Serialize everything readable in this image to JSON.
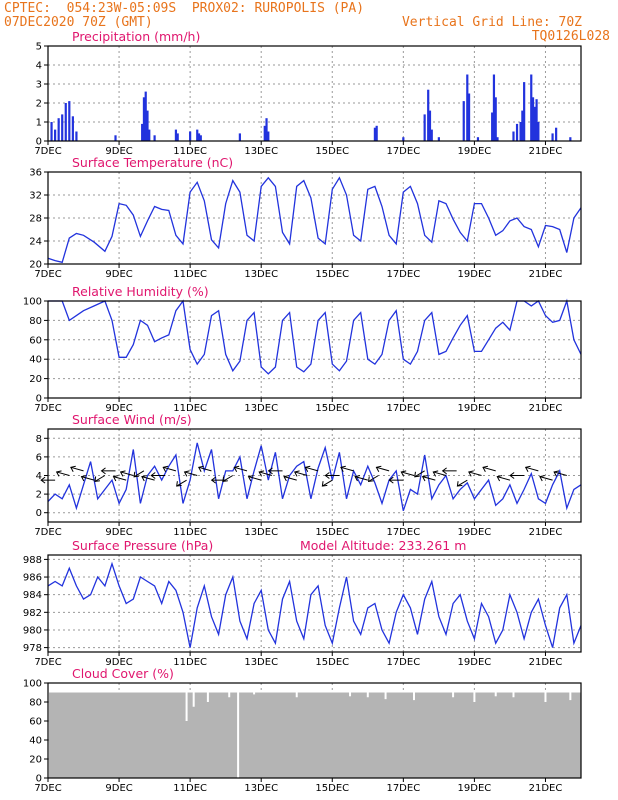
{
  "header": {
    "line1_left": "CPTEC:  054:23W-05:09S  PROX02: RUROPOLIS (PA)",
    "line2_left": "07DEC2020 70Z (GMT)",
    "line2_right": "Vertical Grid Line: 70Z",
    "line3_right": "TQ0126L028"
  },
  "x_ticks": [
    "7DEC",
    "9DEC",
    "11DEC",
    "13DEC",
    "15DEC",
    "17DEC",
    "19DEC",
    "21DEC"
  ],
  "colors": {
    "header": "#e8741c",
    "title": "#e0166e",
    "line": "#2233dd",
    "cloud": "#b4b4b4"
  },
  "chart_data": [
    {
      "type": "bar",
      "title": "Precipitation (mm/h)",
      "x_range_days": [
        7,
        22
      ],
      "ylim": [
        0,
        5
      ],
      "yticks": [
        0,
        1,
        2,
        3,
        4,
        5
      ],
      "grid": true,
      "x_days": [
        7.1,
        7.2,
        7.3,
        7.4,
        7.5,
        7.6,
        7.7,
        7.8,
        8.9,
        9.65,
        9.7,
        9.75,
        9.8,
        9.85,
        10.0,
        10.6,
        10.65,
        11.0,
        11.2,
        11.25,
        11.3,
        12.4,
        13.1,
        13.15,
        13.2,
        16.2,
        16.25,
        17.0,
        17.6,
        17.7,
        17.75,
        17.8,
        18.0,
        18.7,
        18.8,
        18.85,
        19.1,
        19.5,
        19.55,
        19.6,
        19.65,
        20.1,
        20.2,
        20.3,
        20.35,
        20.4,
        20.6,
        20.65,
        20.7,
        20.75,
        20.8,
        21.2,
        21.3,
        21.7
      ],
      "values": [
        1.0,
        0.6,
        1.2,
        1.4,
        2.0,
        2.1,
        1.3,
        0.5,
        0.3,
        0.9,
        2.3,
        2.6,
        1.6,
        0.6,
        0.3,
        0.6,
        0.4,
        0.5,
        0.6,
        0.4,
        0.3,
        0.4,
        0.8,
        1.2,
        0.5,
        0.7,
        0.8,
        0.2,
        1.4,
        2.7,
        1.6,
        0.6,
        0.2,
        2.1,
        3.5,
        2.5,
        0.2,
        1.5,
        3.5,
        2.3,
        0.2,
        0.5,
        0.9,
        1.0,
        1.6,
        3.1,
        3.5,
        2.3,
        1.8,
        2.2,
        1.0,
        0.4,
        0.7,
        0.2
      ]
    },
    {
      "type": "line",
      "title": "Surface Temperature (nC)",
      "ylim": [
        20,
        36
      ],
      "yticks": [
        20,
        24,
        28,
        32,
        36
      ],
      "grid": true,
      "series": [
        {
          "x_days": [
            7.0,
            7.2,
            7.4,
            7.6,
            7.8,
            8.0,
            8.3,
            8.6,
            8.8,
            9.0,
            9.2,
            9.4,
            9.6,
            9.8,
            10.0,
            10.2,
            10.4,
            10.6,
            10.8,
            11.0,
            11.2,
            11.4,
            11.6,
            11.8,
            12.0,
            12.2,
            12.4,
            12.6,
            12.8,
            13.0,
            13.2,
            13.4,
            13.6,
            13.8,
            14.0,
            14.2,
            14.4,
            14.6,
            14.8,
            15.0,
            15.2,
            15.4,
            15.6,
            15.8,
            16.0,
            16.2,
            16.4,
            16.6,
            16.8,
            17.0,
            17.2,
            17.4,
            17.6,
            17.8,
            18.0,
            18.2,
            18.4,
            18.6,
            18.8,
            19.0,
            19.2,
            19.4,
            19.6,
            19.8,
            20.0,
            20.2,
            20.4,
            20.6,
            20.8,
            21.0,
            21.2,
            21.4,
            21.6,
            21.8,
            22.0
          ],
          "values": [
            21.0,
            20.6,
            20.3,
            24.5,
            25.3,
            25.0,
            23.8,
            22.2,
            24.8,
            30.5,
            30.2,
            28.5,
            24.8,
            27.5,
            30.0,
            29.5,
            29.3,
            25.0,
            23.5,
            32.5,
            34.2,
            31.0,
            24.2,
            22.8,
            30.5,
            34.5,
            32.5,
            25.0,
            24.0,
            33.5,
            35.0,
            33.5,
            25.5,
            23.5,
            33.5,
            34.5,
            31.5,
            24.5,
            23.5,
            33.0,
            35.0,
            32.0,
            25.0,
            24.0,
            33.0,
            33.5,
            30.0,
            25.0,
            23.5,
            32.5,
            33.5,
            30.5,
            25.0,
            23.8,
            31.0,
            30.5,
            27.8,
            25.5,
            24.0,
            30.5,
            30.5,
            28.0,
            25.0,
            25.8,
            27.5,
            28.0,
            26.5,
            26.0,
            23.0,
            26.7,
            26.5,
            26.0,
            22.0,
            28.0,
            29.8
          ]
        }
      ]
    },
    {
      "type": "line",
      "title": "Relative Humidity (%)",
      "ylim": [
        0,
        100
      ],
      "yticks": [
        0,
        20,
        40,
        60,
        80,
        100
      ],
      "grid": true,
      "series": [
        {
          "x_days": [
            7.0,
            7.2,
            7.4,
            7.6,
            7.8,
            8.0,
            8.3,
            8.6,
            8.8,
            9.0,
            9.2,
            9.4,
            9.6,
            9.8,
            10.0,
            10.2,
            10.4,
            10.6,
            10.8,
            11.0,
            11.2,
            11.4,
            11.6,
            11.8,
            12.0,
            12.2,
            12.4,
            12.6,
            12.8,
            13.0,
            13.2,
            13.4,
            13.6,
            13.8,
            14.0,
            14.2,
            14.4,
            14.6,
            14.8,
            15.0,
            15.2,
            15.4,
            15.6,
            15.8,
            16.0,
            16.2,
            16.4,
            16.6,
            16.8,
            17.0,
            17.2,
            17.4,
            17.6,
            17.8,
            18.0,
            18.2,
            18.4,
            18.6,
            18.8,
            19.0,
            19.2,
            19.4,
            19.6,
            19.8,
            20.0,
            20.2,
            20.4,
            20.6,
            20.8,
            21.0,
            21.2,
            21.4,
            21.6,
            21.8,
            22.0
          ],
          "values": [
            100,
            100,
            100,
            80,
            85,
            90,
            95,
            100,
            80,
            42,
            42,
            55,
            80,
            75,
            58,
            62,
            65,
            90,
            100,
            50,
            35,
            45,
            85,
            90,
            45,
            28,
            38,
            80,
            88,
            32,
            25,
            32,
            80,
            88,
            32,
            27,
            35,
            80,
            88,
            35,
            28,
            38,
            80,
            88,
            40,
            35,
            45,
            80,
            90,
            40,
            35,
            48,
            80,
            88,
            45,
            48,
            62,
            75,
            85,
            48,
            48,
            60,
            72,
            78,
            70,
            100,
            100,
            95,
            100,
            85,
            78,
            80,
            100,
            60,
            45
          ]
        }
      ]
    },
    {
      "type": "line",
      "title": "Surface Wind (m/s)",
      "ylim": [
        -1,
        9
      ],
      "yticks": [
        0,
        2,
        4,
        6,
        8
      ],
      "grid": true,
      "series": [
        {
          "x_days": [
            7.0,
            7.2,
            7.4,
            7.6,
            7.8,
            8.0,
            8.2,
            8.4,
            8.6,
            8.8,
            9.0,
            9.2,
            9.4,
            9.6,
            9.8,
            10.0,
            10.2,
            10.4,
            10.6,
            10.8,
            11.0,
            11.2,
            11.4,
            11.6,
            11.8,
            12.0,
            12.2,
            12.4,
            12.6,
            12.8,
            13.0,
            13.2,
            13.4,
            13.6,
            13.8,
            14.0,
            14.2,
            14.4,
            14.6,
            14.8,
            15.0,
            15.2,
            15.4,
            15.6,
            15.8,
            16.0,
            16.2,
            16.4,
            16.6,
            16.8,
            17.0,
            17.2,
            17.4,
            17.6,
            17.8,
            18.0,
            18.2,
            18.4,
            18.6,
            18.8,
            19.0,
            19.2,
            19.4,
            19.6,
            19.8,
            20.0,
            20.2,
            20.4,
            20.6,
            20.8,
            21.0,
            21.2,
            21.4,
            21.6,
            21.8,
            22.0
          ],
          "values": [
            1.2,
            2.0,
            1.5,
            3.0,
            0.5,
            3.0,
            5.5,
            1.5,
            2.5,
            3.5,
            1.0,
            2.5,
            6.8,
            1.0,
            4.0,
            5.0,
            3.5,
            5.0,
            6.2,
            1.0,
            3.5,
            7.5,
            4.5,
            6.8,
            1.5,
            4.5,
            4.5,
            6.0,
            1.5,
            4.5,
            7.2,
            3.5,
            6.5,
            1.5,
            4.0,
            5.0,
            5.5,
            1.5,
            4.8,
            7.0,
            3.5,
            6.5,
            1.5,
            4.5,
            3.0,
            5.0,
            3.2,
            1.0,
            3.5,
            4.5,
            0.2,
            2.5,
            2.0,
            6.2,
            1.5,
            3.0,
            4.0,
            1.5,
            2.5,
            3.2,
            1.5,
            2.5,
            3.5,
            0.8,
            1.5,
            3.0,
            1.0,
            2.5,
            4.2,
            1.5,
            1.0,
            3.0,
            4.5,
            0.5,
            2.5,
            3.0
          ]
        }
      ],
      "vectors_x_days": [
        7.2,
        7.6,
        8.0,
        8.3,
        8.6,
        8.9,
        9.2,
        9.4,
        9.7,
        10.0,
        10.3,
        10.6,
        10.9,
        11.2,
        11.6,
        12.0,
        12.2,
        12.6,
        13.0,
        13.3,
        13.6,
        14.0,
        14.3,
        14.6,
        15.0,
        15.2,
        15.6,
        16.0,
        16.3,
        16.6,
        17.0,
        17.3,
        17.6,
        17.9,
        18.2,
        18.5,
        18.8,
        19.2,
        19.6,
        20.0,
        20.4,
        20.8,
        21.2,
        21.6
      ]
    },
    {
      "type": "line",
      "title": "Surface Pressure (hPa)",
      "annotation": "Model Altitude: 233.261 m",
      "ylim": [
        977.5,
        988.5
      ],
      "yticks": [
        978,
        980,
        982,
        984,
        986,
        988
      ],
      "grid": true,
      "series": [
        {
          "x_days": [
            7.0,
            7.2,
            7.4,
            7.6,
            7.8,
            8.0,
            8.2,
            8.4,
            8.6,
            8.8,
            9.0,
            9.2,
            9.4,
            9.6,
            9.8,
            10.0,
            10.2,
            10.4,
            10.6,
            10.8,
            11.0,
            11.2,
            11.4,
            11.6,
            11.8,
            12.0,
            12.2,
            12.4,
            12.6,
            12.8,
            13.0,
            13.2,
            13.4,
            13.6,
            13.8,
            14.0,
            14.2,
            14.4,
            14.6,
            14.8,
            15.0,
            15.2,
            15.4,
            15.6,
            15.8,
            16.0,
            16.2,
            16.4,
            16.6,
            16.8,
            17.0,
            17.2,
            17.4,
            17.6,
            17.8,
            18.0,
            18.2,
            18.4,
            18.6,
            18.8,
            19.0,
            19.2,
            19.4,
            19.6,
            19.8,
            20.0,
            20.2,
            20.4,
            20.6,
            20.8,
            21.0,
            21.2,
            21.4,
            21.6,
            21.8,
            22.0
          ],
          "values": [
            985.0,
            985.5,
            985.0,
            987.0,
            985.0,
            983.5,
            984.0,
            986.0,
            985.0,
            987.5,
            985.0,
            983.0,
            983.5,
            986.0,
            985.5,
            985.0,
            983.0,
            985.5,
            984.5,
            982.0,
            978.0,
            982.5,
            985.0,
            981.5,
            979.5,
            984.0,
            986.0,
            981.0,
            979.0,
            983.0,
            984.5,
            980.0,
            978.5,
            983.5,
            985.5,
            981.0,
            979.0,
            984.0,
            985.0,
            980.5,
            978.5,
            982.5,
            986.0,
            981.0,
            979.5,
            982.5,
            983.0,
            980.0,
            978.5,
            982.0,
            984.0,
            982.5,
            979.5,
            983.5,
            985.5,
            981.5,
            979.5,
            983.0,
            984.0,
            981.0,
            979.0,
            983.0,
            981.5,
            978.5,
            980.0,
            984.0,
            982.0,
            979.0,
            982.0,
            983.5,
            980.5,
            978.0,
            982.5,
            984.0,
            978.5,
            980.5
          ]
        }
      ]
    },
    {
      "type": "bar",
      "title": "Cloud Cover (%)",
      "ylim": [
        0,
        100
      ],
      "yticks": [
        0,
        20,
        40,
        60,
        80,
        100
      ],
      "grid": true,
      "baseline_percent": 90,
      "x_days": [
        10.9,
        11.1,
        11.5,
        12.1,
        12.35,
        12.8,
        14.0,
        15.5,
        16.0,
        16.5,
        17.3,
        18.4,
        19.0,
        19.6,
        20.1,
        21.0,
        21.7
      ],
      "values": [
        60,
        75,
        80,
        85,
        0,
        88,
        85,
        86,
        85,
        83,
        82,
        85,
        80,
        86,
        85,
        80,
        82
      ]
    }
  ]
}
